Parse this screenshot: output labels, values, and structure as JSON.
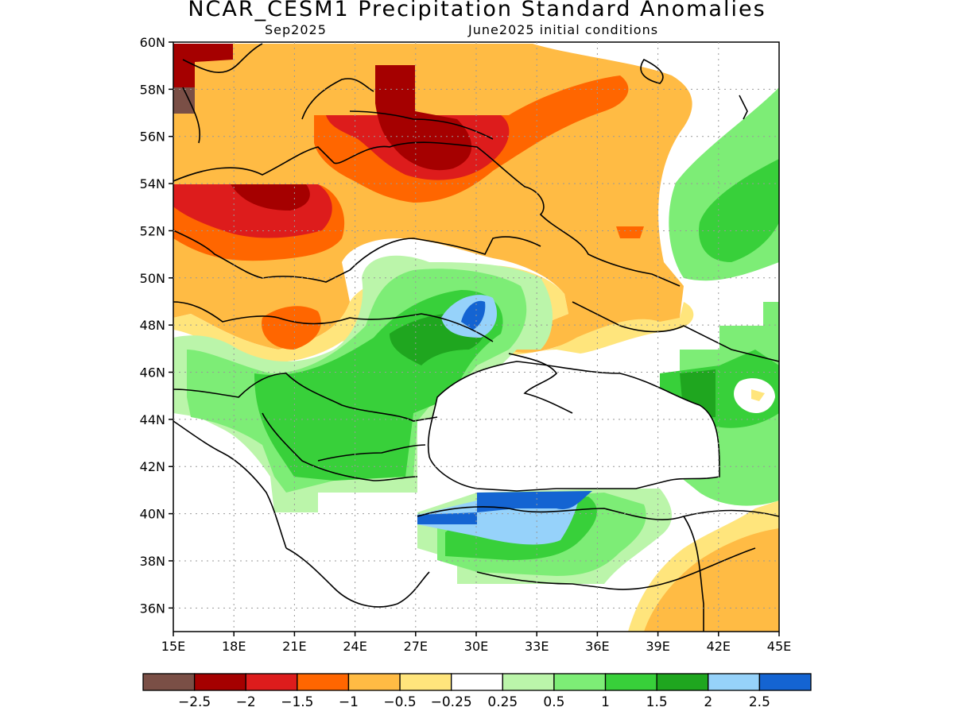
{
  "title": "NCAR_CESM1 Precipitation Standard Anomalies",
  "subtitle_left": "Sep2025",
  "subtitle_right": "June2025 initial conditions",
  "map": {
    "lon_range": [
      15,
      45
    ],
    "lat_range": [
      35,
      60
    ],
    "lat_ticks": [
      "60N",
      "58N",
      "56N",
      "54N",
      "52N",
      "50N",
      "48N",
      "46N",
      "44N",
      "42N",
      "40N",
      "38N",
      "36N"
    ],
    "lon_ticks": [
      "15E",
      "18E",
      "21E",
      "24E",
      "27E",
      "30E",
      "33E",
      "36E",
      "39E",
      "42E",
      "45E"
    ],
    "grid": "dotted"
  },
  "colorbar": {
    "colors": [
      "#7a4f46",
      "#a50000",
      "#dd1c1c",
      "#ff6600",
      "#ffbb44",
      "#ffe57c",
      "#ffffff",
      "#bbf5aa",
      "#7ded76",
      "#38d03a",
      "#1fa61f",
      "#96d2fa",
      "#1464d2"
    ],
    "labels": [
      "-2.5",
      "-2",
      "-1.5",
      "-1",
      "-0.5",
      "-0.25",
      "0.25",
      "0.5",
      "1",
      "1.5",
      "2",
      "2.5"
    ]
  }
}
